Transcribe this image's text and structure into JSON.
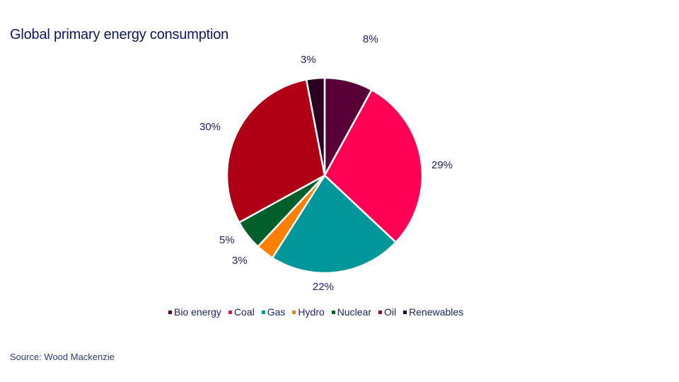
{
  "chart_data": {
    "type": "pie",
    "title": "Global primary energy consumption",
    "start_angle": "12 o'clock",
    "direction": "clockwise",
    "categories": [
      "Bio energy",
      "Coal",
      "Gas",
      "Hydro",
      "Nuclear",
      "Oil",
      "Renewables"
    ],
    "values": [
      8,
      29,
      22,
      3,
      5,
      30,
      3
    ],
    "labels": [
      "8%",
      "29%",
      "22%",
      "3%",
      "5%",
      "30%",
      "3%"
    ],
    "colors": [
      "#5a0038",
      "#ff0055",
      "#00969a",
      "#ff7f00",
      "#005f2a",
      "#b00016",
      "#2d0022"
    ],
    "legend_position": "bottom"
  },
  "title": "Global primary energy consumption",
  "legend": [
    {
      "label": "Bio energy",
      "color": "#5a0038"
    },
    {
      "label": "Coal",
      "color": "#ff0055"
    },
    {
      "label": "Gas",
      "color": "#00969a"
    },
    {
      "label": "Hydro",
      "color": "#ff7f00"
    },
    {
      "label": "Nuclear",
      "color": "#005f2a"
    },
    {
      "label": "Oil",
      "color": "#b00016"
    },
    {
      "label": "Renewables",
      "color": "#2d0022"
    }
  ],
  "slice_labels": {
    "bio": "8%",
    "coal": "29%",
    "gas": "22%",
    "hydro": "3%",
    "nuclear": "5%",
    "oil": "30%",
    "renewables": "3%"
  },
  "source": "Source: Wood Mackenzie"
}
